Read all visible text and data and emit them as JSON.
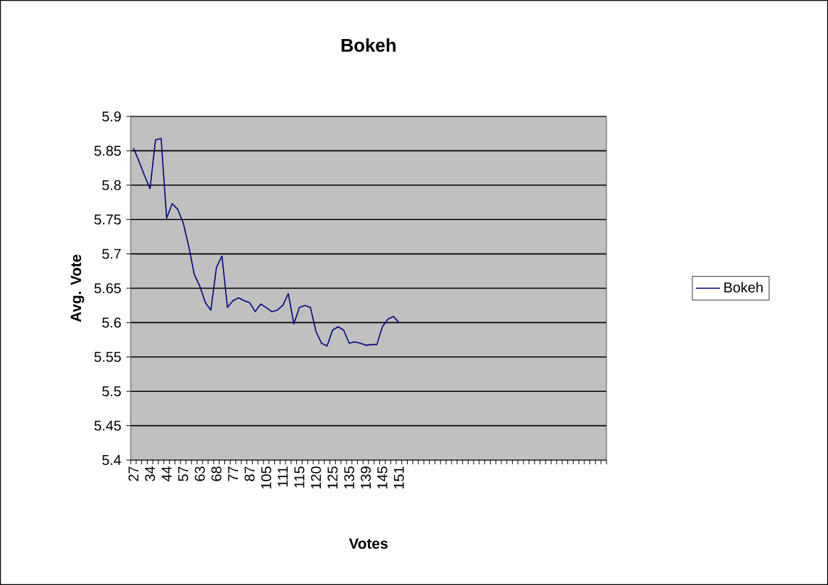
{
  "chart_data": {
    "type": "line",
    "title": "Bokeh",
    "xlabel": "Votes",
    "ylabel": "Avg. Vote",
    "categories": [
      "27",
      null,
      null,
      "34",
      null,
      null,
      "44",
      null,
      null,
      "57",
      null,
      null,
      "63",
      null,
      null,
      "68",
      null,
      null,
      "77",
      null,
      null,
      "87",
      null,
      null,
      "105",
      null,
      null,
      "111",
      null,
      null,
      "115",
      null,
      null,
      "120",
      null,
      null,
      "125",
      null,
      null,
      "135",
      null,
      null,
      "139",
      null,
      null,
      "145",
      null,
      null,
      "151",
      null,
      null,
      null,
      null,
      null,
      null,
      null,
      null,
      null,
      null,
      null,
      null,
      null,
      null,
      null,
      null,
      null,
      null,
      null,
      null,
      null,
      null,
      null,
      null,
      null,
      null,
      null,
      null,
      null,
      null,
      null,
      null,
      null,
      null,
      null,
      null,
      null
    ],
    "series": [
      {
        "name": "Bokeh",
        "color": "#000080",
        "values": [
          5.854,
          5.835,
          5.814,
          5.795,
          5.866,
          5.868,
          5.752,
          5.773,
          5.765,
          5.745,
          5.711,
          5.67,
          5.653,
          5.629,
          5.618,
          5.68,
          5.697,
          5.622,
          5.632,
          5.636,
          5.632,
          5.629,
          5.616,
          5.627,
          5.622,
          5.616,
          5.618,
          5.625,
          5.642,
          5.598,
          5.622,
          5.625,
          5.622,
          5.587,
          5.57,
          5.566,
          5.589,
          5.594,
          5.589,
          5.57,
          5.572,
          5.57,
          5.567,
          5.568,
          5.568,
          5.594,
          5.605,
          5.609,
          5.6,
          null,
          null,
          null,
          null,
          null,
          null,
          null,
          null,
          null,
          null,
          null,
          null,
          null,
          null,
          null,
          null,
          null,
          null,
          null,
          null,
          null,
          null,
          null,
          null,
          null,
          null,
          null,
          null,
          null,
          null,
          null,
          null,
          null,
          null,
          null,
          null,
          null
        ]
      }
    ],
    "ylim": [
      5.4,
      5.9
    ],
    "yticks": [
      5.4,
      5.45,
      5.5,
      5.55,
      5.6,
      5.65,
      5.7,
      5.75,
      5.8,
      5.85,
      5.9
    ],
    "grid": "y",
    "legend": "right",
    "marker": "none",
    "line_style": "solid"
  }
}
